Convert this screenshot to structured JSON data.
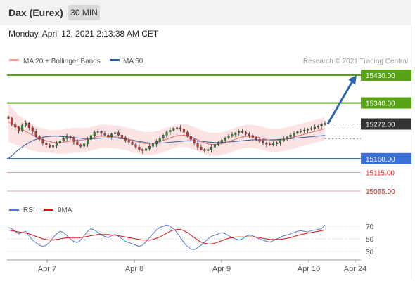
{
  "header": {
    "title": "Dax (Eurex)",
    "timeframe": "30 MIN",
    "timestamp": "Monday, April 12, 2021 2:13:38 AM CET"
  },
  "legend_main": [
    {
      "label": "MA 20 + Bollinger Bands",
      "color": "#f29999"
    },
    {
      "label": "MA 50",
      "color": "#2e5a9e"
    }
  ],
  "credit": "Research © 2021 Trading Central",
  "rsi_legend": [
    {
      "label": "RSI",
      "color": "#5577cc"
    },
    {
      "label": "9MA",
      "color": "#dd1111"
    }
  ],
  "colors": {
    "resistance": "#57a315",
    "support": "#3a6fd8",
    "support_minor": "#e08080",
    "current": "#333333",
    "arrow": "#2b66b0",
    "bull": "#2e8a2e",
    "bear": "#cc3333"
  },
  "chart_data": {
    "type": "line",
    "title": "Dax (Eurex)",
    "timeframe": "30 MIN",
    "x_ticks": [
      "Apr 7",
      "Apr 8",
      "Apr 9",
      "Apr 10",
      "Apr 24"
    ],
    "y_range": [
      15020,
      15450
    ],
    "levels": [
      {
        "value": 15430.0,
        "label": "15430.00",
        "kind": "resistance"
      },
      {
        "value": 15340.0,
        "label": "15340.00",
        "kind": "resistance"
      },
      {
        "value": 15272.0,
        "label": "15272.00",
        "kind": "current"
      },
      {
        "value": 15160.0,
        "label": "15160.00",
        "kind": "pivot"
      },
      {
        "value": 15115.0,
        "label": "15115.00",
        "kind": "support"
      },
      {
        "value": 15055.0,
        "label": "15055.00",
        "kind": "support"
      }
    ],
    "close_series": [
      15290,
      15270,
      15262,
      15250,
      15268,
      15275,
      15260,
      15248,
      15232,
      15222,
      15210,
      15205,
      15198,
      15202,
      15210,
      15218,
      15225,
      15232,
      15228,
      15215,
      15205,
      15200,
      15208,
      15222,
      15235,
      15245,
      15248,
      15242,
      15236,
      15230,
      15240,
      15244,
      15236,
      15228,
      15220,
      15214,
      15206,
      15198,
      15190,
      15186,
      15192,
      15200,
      15208,
      15216,
      15226,
      15236,
      15246,
      15252,
      15258,
      15260,
      15255,
      15245,
      15232,
      15222,
      15210,
      15198,
      15190,
      15186,
      15190,
      15198,
      15206,
      15213,
      15220,
      15227,
      15233,
      15238,
      15243,
      15248,
      15245,
      15240,
      15235,
      15228,
      15222,
      15216,
      15211,
      15207,
      15205,
      15208,
      15212,
      15218,
      15224,
      15230,
      15236,
      15242,
      15247,
      15250,
      15252,
      15255,
      15258,
      15262,
      15266,
      15270,
      15274
    ],
    "ma20": [
      15280,
      15272,
      15266,
      15260,
      15254,
      15248,
      15242,
      15236,
      15231,
      15226,
      15222,
      15218,
      15215,
      15213,
      15212,
      15212,
      15213,
      15215,
      15217,
      15219,
      15220,
      15220,
      15221,
      15223,
      15226,
      15229,
      15232,
      15233,
      15233,
      15232,
      15231,
      15230,
      15229,
      15227,
      15225,
      15222,
      15219,
      15216,
      15213,
      15210,
      15209,
      15209,
      15210,
      15212,
      15215,
      15219,
      15223,
      15227,
      15231,
      15234,
      15235,
      15235,
      15233,
      15230,
      15226,
      15221,
      15216,
      15211,
      15208,
      15206,
      15206,
      15207,
      15209,
      15212,
      15215,
      15219,
      15223,
      15227,
      15230,
      15232,
      15233,
      15232,
      15230,
      15228,
      15225,
      15222,
      15220,
      15219,
      15219,
      15220,
      15222,
      15224,
      15227,
      15230,
      15233,
      15236,
      15239,
      15242,
      15245,
      15248,
      15251,
      15254,
      15257
    ],
    "ma50": [
      15160,
      15170,
      15180,
      15190,
      15198,
      15206,
      15212,
      15218,
      15222,
      15226,
      15229,
      15231,
      15232,
      15233,
      15233,
      15232,
      15231,
      15230,
      15229,
      15228,
      15227,
      15226,
      15225,
      15225,
      15225,
      15225,
      15226,
      15226,
      15227,
      15227,
      15227,
      15227,
      15226,
      15225,
      15224,
      15222,
      15220,
      15218,
      15216,
      15214,
      15212,
      15211,
      15210,
      15210,
      15210,
      15211,
      15212,
      15213,
      15214,
      15215,
      15216,
      15217,
      15218,
      15218,
      15218,
      15217,
      15216,
      15215,
      15214,
      15213,
      15212,
      15212,
      15212,
      15213,
      15214,
      15215,
      15216,
      15217,
      15218,
      15219,
      15220,
      15221,
      15221,
      15221,
      15221,
      15221,
      15221,
      15221,
      15222,
      15222,
      15223,
      15224,
      15225,
      15226,
      15227,
      15228,
      15229,
      15230,
      15231,
      15232,
      15233,
      15234,
      15235
    ],
    "bb_upper": [
      15340,
      15325,
      15312,
      15300,
      15292,
      15285,
      15278,
      15272,
      15266,
      15262,
      15258,
      15255,
      15253,
      15252,
      15252,
      15253,
      15255,
      15257,
      15259,
      15260,
      15260,
      15259,
      15259,
      15260,
      15262,
      15265,
      15268,
      15270,
      15270,
      15269,
      15268,
      15267,
      15266,
      15264,
      15262,
      15259,
      15256,
      15253,
      15250,
      15247,
      15246,
      15246,
      15247,
      15249,
      15252,
      15256,
      15260,
      15264,
      15268,
      15271,
      15272,
      15272,
      15270,
      15267,
      15263,
      15258,
      15253,
      15248,
      15245,
      15243,
      15243,
      15244,
      15246,
      15249,
      15252,
      15256,
      15260,
      15264,
      15267,
      15269,
      15270,
      15269,
      15267,
      15265,
      15262,
      15259,
      15257,
      15256,
      15256,
      15257,
      15259,
      15261,
      15264,
      15267,
      15270,
      15273,
      15276,
      15279,
      15282,
      15285,
      15288,
      15291,
      15294
    ],
    "bb_lower": [
      15215,
      15210,
      15206,
      15202,
      15198,
      15194,
      15190,
      15186,
      15184,
      15182,
      15181,
      15180,
      15179,
      15178,
      15177,
      15176,
      15176,
      15177,
      15178,
      15179,
      15180,
      15181,
      15182,
      15184,
      15186,
      15189,
      15192,
      15194,
      15195,
      15195,
      15194,
      15193,
      15192,
      15190,
      15188,
      15185,
      15182,
      15179,
      15176,
      15173,
      15172,
      15172,
      15173,
      15175,
      15178,
      15182,
      15186,
      15190,
      15194,
      15197,
      15198,
      15198,
      15196,
      15193,
      15189,
      15184,
      15179,
      15174,
      15171,
      15169,
      15169,
      15170,
      15172,
      15175,
      15178,
      15182,
      15186,
      15190,
      15193,
      15195,
      15196,
      15195,
      15193,
      15191,
      15188,
      15185,
      15183,
      15182,
      15182,
      15183,
      15185,
      15187,
      15190,
      15193,
      15196,
      15199,
      15202,
      15205,
      15208,
      15211,
      15214,
      15217,
      15220
    ],
    "forecast": {
      "from": 15272.0,
      "to": 15430.0
    },
    "rsi": {
      "y_ticks": [
        70,
        50,
        30
      ],
      "rsi": [
        68,
        66,
        62,
        58,
        60,
        62,
        55,
        48,
        44,
        40,
        38,
        40,
        45,
        52,
        58,
        62,
        60,
        55,
        50,
        46,
        44,
        48,
        55,
        62,
        66,
        64,
        60,
        56,
        54,
        52,
        55,
        57,
        54,
        50,
        46,
        44,
        42,
        40,
        38,
        40,
        46,
        52,
        58,
        64,
        68,
        70,
        72,
        70,
        66,
        60,
        52,
        44,
        38,
        34,
        33,
        36,
        40,
        45,
        50,
        54,
        56,
        58,
        60,
        58,
        55,
        52,
        50,
        48,
        50,
        54,
        56,
        55,
        52,
        50,
        48,
        46,
        45,
        47,
        50,
        52,
        55,
        56,
        58,
        60,
        62,
        63,
        62,
        61,
        63,
        64,
        65,
        66,
        72
      ],
      "ma9": [
        64,
        63,
        62,
        61,
        60,
        59,
        58,
        56,
        54,
        52,
        50,
        49,
        48,
        48,
        49,
        50,
        51,
        52,
        52,
        52,
        52,
        52,
        53,
        54,
        55,
        56,
        57,
        57,
        57,
        57,
        56,
        56,
        55,
        54,
        53,
        52,
        51,
        50,
        49,
        48,
        48,
        48,
        49,
        51,
        53,
        56,
        59,
        62,
        64,
        65,
        65,
        63,
        60,
        56,
        52,
        48,
        45,
        43,
        42,
        42,
        43,
        45,
        47,
        49,
        51,
        52,
        53,
        53,
        53,
        53,
        53,
        53,
        53,
        52,
        51,
        50,
        49,
        49,
        49,
        49,
        50,
        51,
        52,
        54,
        55,
        57,
        58,
        59,
        60,
        61,
        62,
        63,
        64
      ]
    }
  }
}
